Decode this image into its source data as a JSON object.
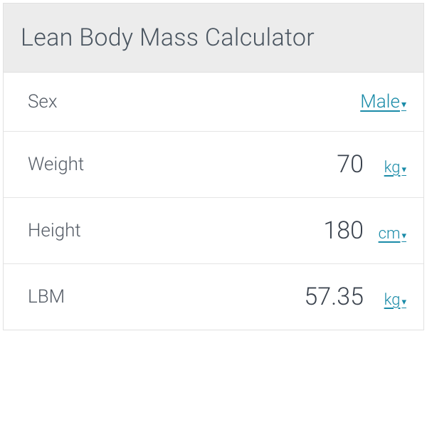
{
  "header": {
    "title": "Lean Body Mass Calculator"
  },
  "rows": {
    "sex": {
      "label": "Sex",
      "selected": "Male"
    },
    "weight": {
      "label": "Weight",
      "value": "70",
      "unit": "kg"
    },
    "height": {
      "label": "Height",
      "value": "180",
      "unit": "cm"
    },
    "lbm": {
      "label": "LBM",
      "value": "57.35",
      "unit": "kg"
    }
  },
  "colors": {
    "header_bg": "#ececec",
    "border": "#e0e0e0",
    "row_border": "#e5e5e5",
    "title_text": "#4a5560",
    "label_text": "#555c66",
    "value_text": "#3a424d",
    "link": "#1a8ba8",
    "background": "#ffffff"
  },
  "typography": {
    "title_fontsize": 34,
    "label_fontsize": 26,
    "value_fontsize": 34,
    "unit_fontsize": 22,
    "font_weight": 300
  }
}
